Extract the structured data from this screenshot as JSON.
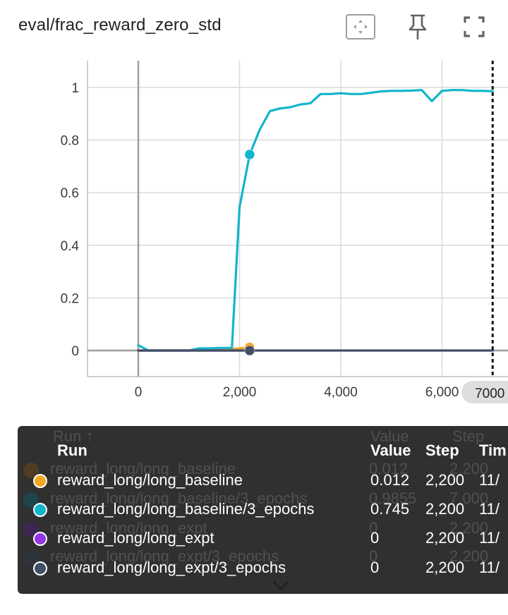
{
  "card": {
    "title": "eval/frac_reward_zero_std"
  },
  "toolbar": {
    "fit_icon": "fit-domain-icon",
    "pin_icon": "pin-icon",
    "fullscreen_icon": "fullscreen-icon"
  },
  "chart_data": {
    "type": "line",
    "title": "eval/frac_reward_zero_std",
    "xlim": [
      -1000,
      7000
    ],
    "ylim": [
      -0.1,
      1.1
    ],
    "x_ticks": [
      "0",
      "2,000",
      "4,000",
      "6,000"
    ],
    "y_ticks": [
      "0",
      "0.2",
      "0.4",
      "0.6",
      "0.8",
      "1"
    ],
    "x_tick_values": [
      0,
      2000,
      4000,
      6000
    ],
    "y_tick_values": [
      0,
      0.2,
      0.4,
      0.6,
      0.8,
      1
    ],
    "grid": true,
    "hover_step": 7000,
    "hover_step_label": "7000",
    "series": [
      {
        "name": "reward_long/long_baseline",
        "color": "#f5a623",
        "x": [
          0,
          200,
          400,
          600,
          800,
          1000,
          1200,
          1400,
          1600,
          1800,
          2000,
          2200
        ],
        "y": [
          0.0,
          0.0,
          0.0,
          0.0,
          0.0,
          0.0,
          0.002,
          0.003,
          0.004,
          0.005,
          0.008,
          0.012
        ]
      },
      {
        "name": "reward_long/long_baseline/3_epochs",
        "color": "#12b5cb",
        "x": [
          0,
          200,
          400,
          600,
          800,
          1000,
          1200,
          1400,
          1600,
          1800,
          1850,
          2000,
          2200,
          2400,
          2600,
          2800,
          3000,
          3200,
          3400,
          3600,
          3800,
          4000,
          4200,
          4400,
          4600,
          4800,
          5000,
          5200,
          5400,
          5600,
          5800,
          6000,
          6200,
          6400,
          6600,
          6800,
          7000
        ],
        "y": [
          0.02,
          0.0,
          0.0,
          0.0,
          0.0,
          0.0,
          0.008,
          0.008,
          0.01,
          0.01,
          0.01,
          0.545,
          0.745,
          0.84,
          0.91,
          0.92,
          0.925,
          0.935,
          0.94,
          0.975,
          0.975,
          0.978,
          0.975,
          0.975,
          0.98,
          0.985,
          0.987,
          0.987,
          0.988,
          0.99,
          0.948,
          0.987,
          0.99,
          0.99,
          0.987,
          0.987,
          0.9855
        ]
      },
      {
        "name": "reward_long/long_expt",
        "color": "#9334e6",
        "x": [
          0,
          2200
        ],
        "y": [
          0,
          0
        ]
      },
      {
        "name": "reward_long/long_expt/3_epochs",
        "color": "#425066",
        "x": [
          0,
          1000,
          2000,
          3000,
          4000,
          5000,
          6000,
          7000
        ],
        "y": [
          0,
          0,
          0,
          0,
          0,
          0,
          0,
          0
        ]
      }
    ],
    "hover_markers": [
      {
        "series": 1,
        "x": 2200,
        "y": 0.745,
        "color": "#12b5cb"
      },
      {
        "series": 0,
        "x": 2200,
        "y": 0.012,
        "color": "#f5a623"
      },
      {
        "series": 3,
        "x": 2200,
        "y": 0.0,
        "color": "#425066"
      }
    ]
  },
  "tooltip": {
    "headers": {
      "run": "Run",
      "value": "Value",
      "step": "Step",
      "time": "Tim"
    },
    "ghost_headers": {
      "run": "Run ↑",
      "value": "Value",
      "step": "Step"
    },
    "rows": [
      {
        "run": "reward_long/long_baseline",
        "value": "0.012",
        "step": "2,200",
        "time": "11/",
        "color": "#f5a623"
      },
      {
        "run": "reward_long/long_baseline/3_epochs",
        "value": "0.745",
        "step": "2,200",
        "time": "11/",
        "color": "#12b5cb"
      },
      {
        "run": "reward_long/long_expt",
        "value": "0",
        "step": "2,200",
        "time": "11/",
        "color": "#9334e6"
      },
      {
        "run": "reward_long/long_expt/3_epochs",
        "value": "0",
        "step": "2,200",
        "time": "11/",
        "color": "#425066"
      }
    ],
    "ghost_rows": [
      {
        "run": "reward_long/long_baseline",
        "value": "0.012",
        "step": "2,200",
        "color": "#6b4a12"
      },
      {
        "run": "reward_long/long_baseline/3_epochs",
        "value": "0.9855",
        "step": "7,000",
        "color": "#0d5a66"
      },
      {
        "run": "reward_long/long_expt",
        "value": "0",
        "step": "2,200",
        "color": "#4a1d73"
      },
      {
        "run": "reward_long/long_expt/3_epochs",
        "value": "0",
        "step": "2,200",
        "color": "#2c3444"
      }
    ]
  }
}
